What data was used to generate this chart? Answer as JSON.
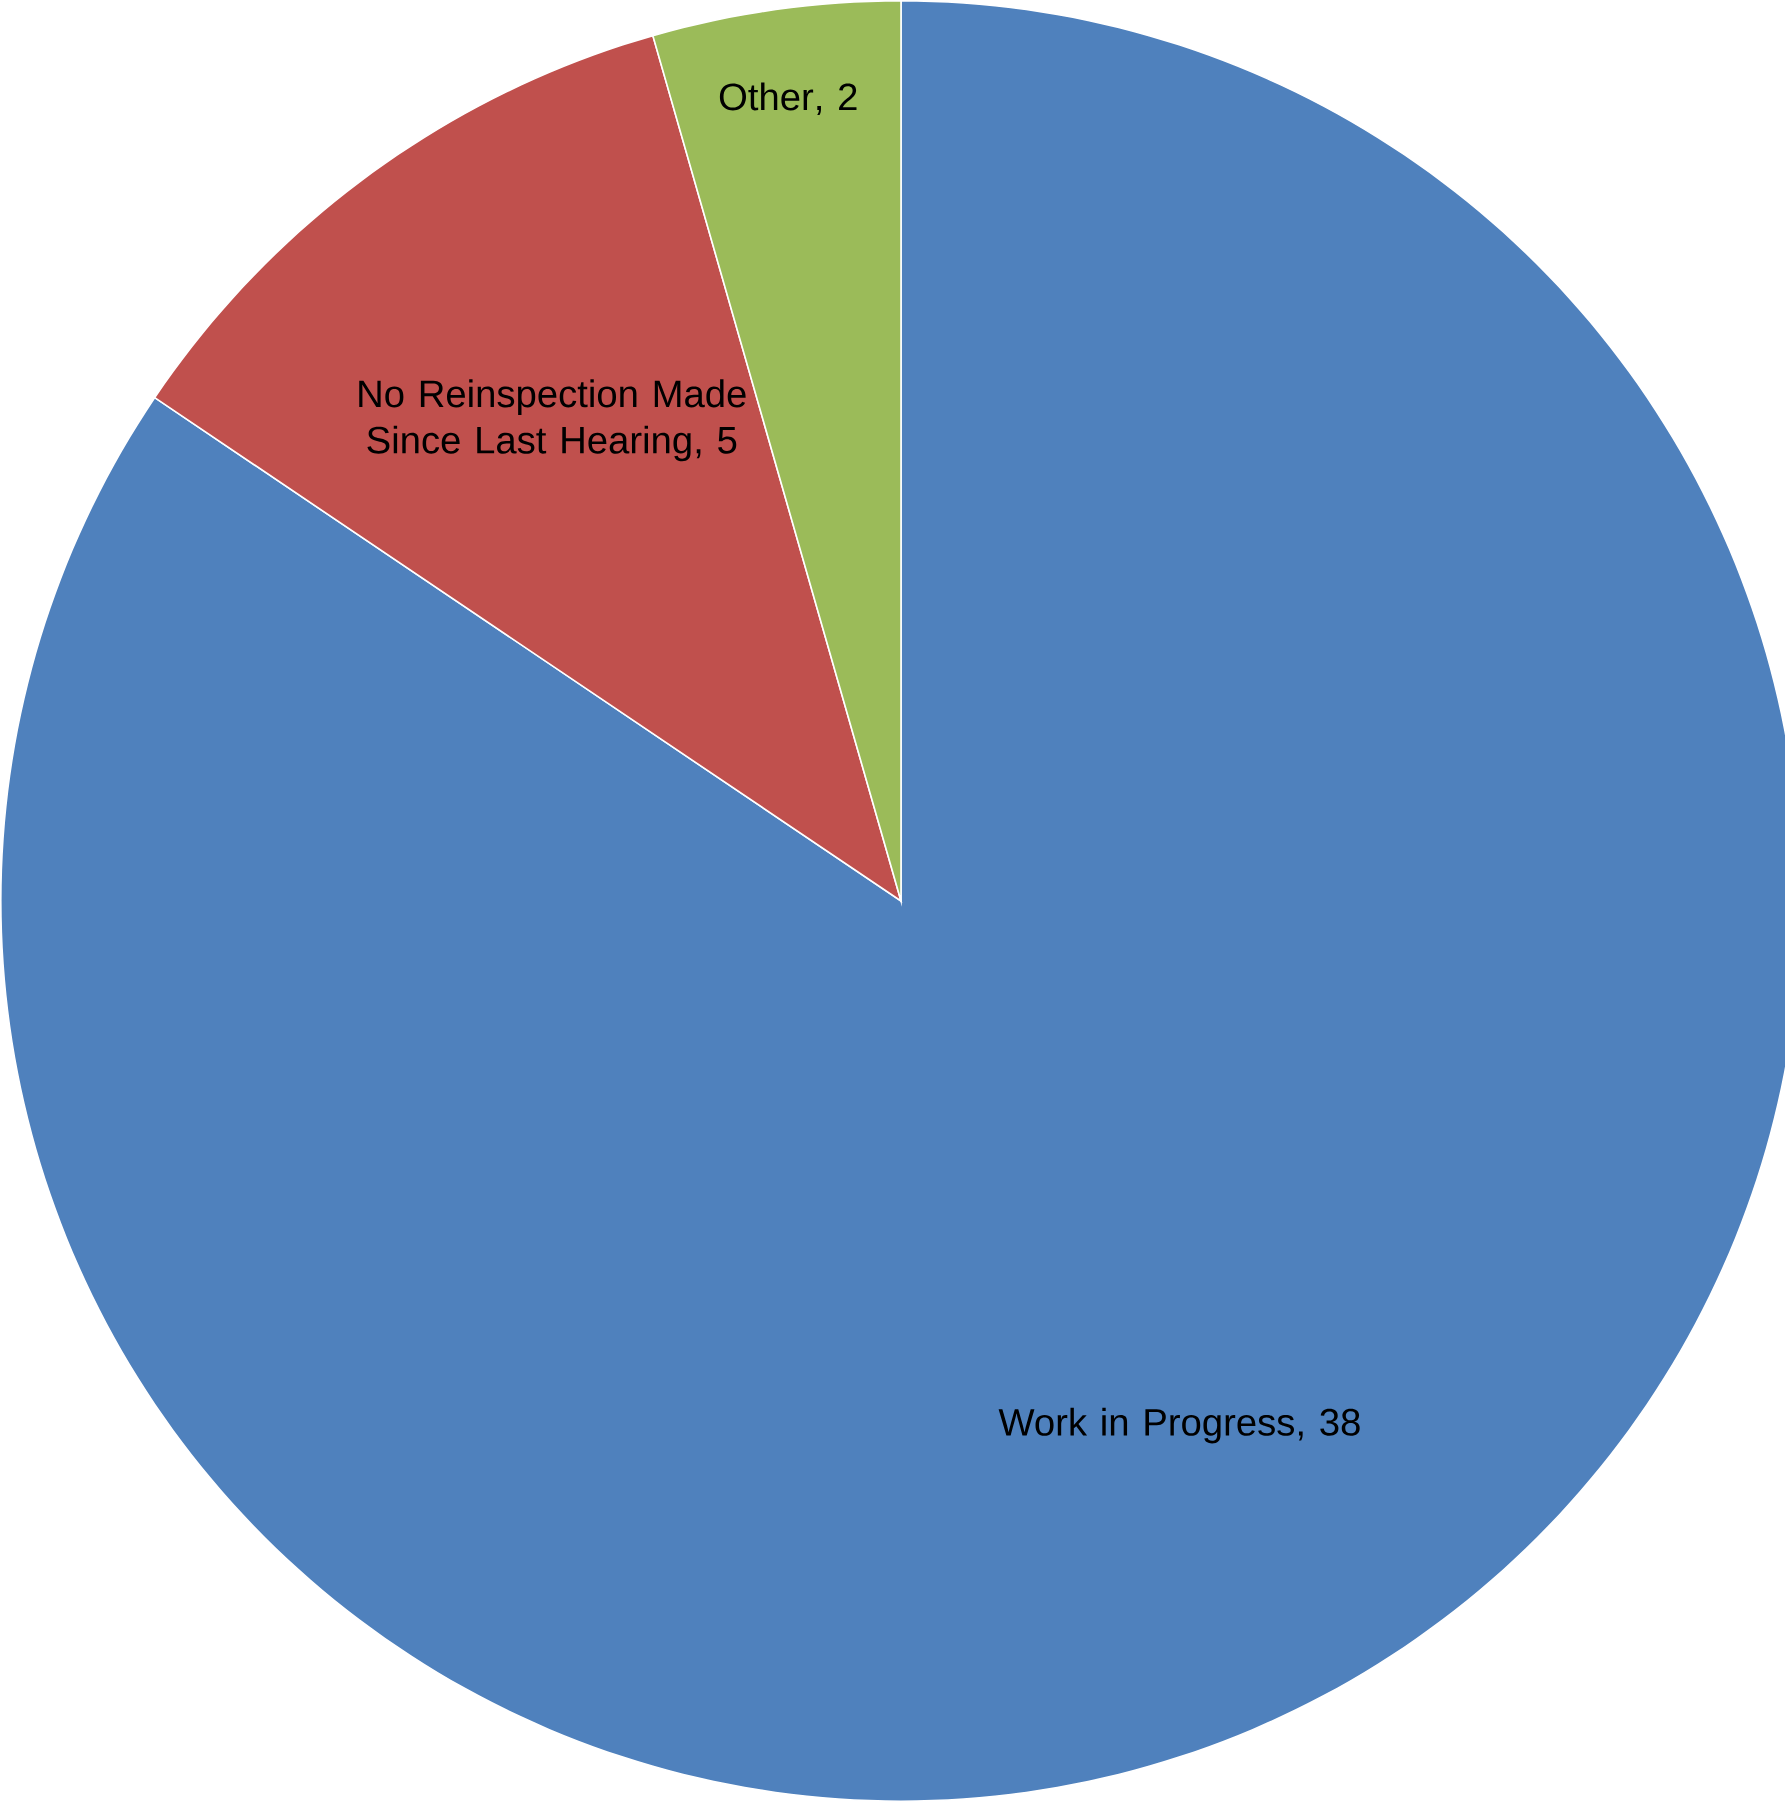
{
  "chart_data": {
    "type": "pie",
    "categories": [
      "Work in Progress",
      "No Reinspection Made Since Last Hearing",
      "Other"
    ],
    "values": [
      38,
      5,
      2
    ],
    "colors": [
      "#4f81bd",
      "#c0504d",
      "#9bbb59"
    ],
    "value_labels": [
      ", 38",
      ", 5",
      ", 2"
    ]
  }
}
